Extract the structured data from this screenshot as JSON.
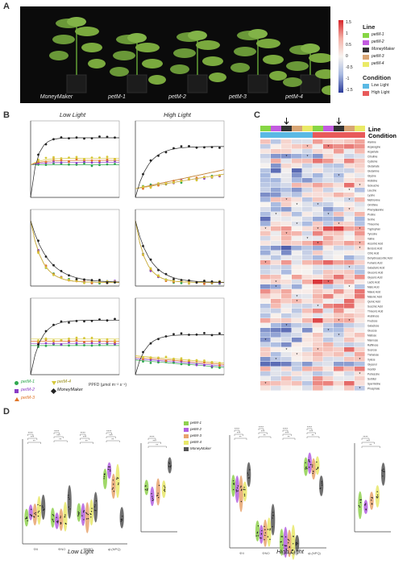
{
  "panels": {
    "a": "A",
    "b": "B",
    "c": "C",
    "d": "D"
  },
  "photo": {
    "plant_labels": [
      "MoneyMaker",
      "petM-1",
      "petM-2",
      "petM-3",
      "petM-4"
    ]
  },
  "heatmap_legend": {
    "scale_ticks": [
      "1.5",
      "1",
      "0.5",
      "0",
      "-0.5",
      "-1",
      "-1.5"
    ],
    "line_title": "Line",
    "line_items": [
      "petM-1",
      "petM-2",
      "MoneyMaker",
      "petM-3",
      "petM-4"
    ],
    "condition_title": "Condition",
    "condition_items": [
      "Low Light",
      "High Light"
    ],
    "colors": {
      "line": [
        "#86d644",
        "#c35be0",
        "#333333",
        "#d8a574",
        "#eaea66"
      ],
      "condition": [
        "#5ab9e4",
        "#e85a5a"
      ]
    }
  },
  "panel_b": {
    "col_titles": [
      "Low Light",
      "High Light"
    ],
    "xlabel": "PPFD (µmol m⁻² s⁻¹)",
    "legend": [
      "petM-1",
      "petM-2",
      "petM-3",
      "petM-4",
      "MoneyMaker"
    ],
    "colors": {
      "petM-1": "#2fa84f",
      "petM-2": "#8a3cc6",
      "petM-3": "#e0762a",
      "petM-4": "#d6c83a",
      "MoneyMaker": "#222222"
    }
  },
  "panel_c": {
    "row_titles": [
      "Line",
      "Condition"
    ],
    "row_labels": [
      "Alanine",
      "Asparagine",
      "Aspartate",
      "Citrulline",
      "Cysteine",
      "Glutamate",
      "Glutamine",
      "Glycine",
      "Histidine",
      "Isoleucine",
      "Leucine",
      "Lysine",
      "Methionine",
      "Ornithine",
      "Phenylalanine",
      "Proline",
      "Serine",
      "Threonine",
      "Tryptophan",
      "Tyrosine",
      "Valine",
      "Ascorbic Acid",
      "Benzoic Acid",
      "Citric Acid",
      "Dehydroascorbic Acid",
      "Fumaric Acid",
      "Galactaric Acid",
      "Gluconic Acid",
      "Glyceric Acid",
      "Lactic Acid",
      "Malic Acid",
      "Maleic Acid",
      "Malonic Acid",
      "Quinic Acid",
      "Succinic Acid",
      "Threonic Acid",
      "Arabinose",
      "Fructose",
      "Galactose",
      "Glucose",
      "Maltose",
      "Mannose",
      "Raffinose",
      "Sucrose",
      "Trehalose",
      "Xylose",
      "Glycerol",
      "Inositol",
      "Putrescine",
      "Sorbitol",
      "Spermidine",
      "Phosphate"
    ]
  },
  "panel_d": {
    "left_title": "Low Light",
    "right_title": "High Light",
    "legend": [
      "petM-1",
      "petM-2",
      "petM-3",
      "petM-4",
      "MoneyMaker"
    ],
    "left_xticks": [
      "ΦII",
      "ΦNO",
      "ΦNPQ",
      "qL(NPQ)"
    ],
    "right_xticks": [
      "ΦII",
      "ΦNO",
      "ΦNPQ",
      "qL(NPQ)"
    ],
    "sig": [
      "****",
      "***",
      "**",
      "*",
      "ns"
    ],
    "colors": [
      "#8fd14f",
      "#b35fe0",
      "#e8a36d",
      "#e8e86a",
      "#555555"
    ]
  }
}
